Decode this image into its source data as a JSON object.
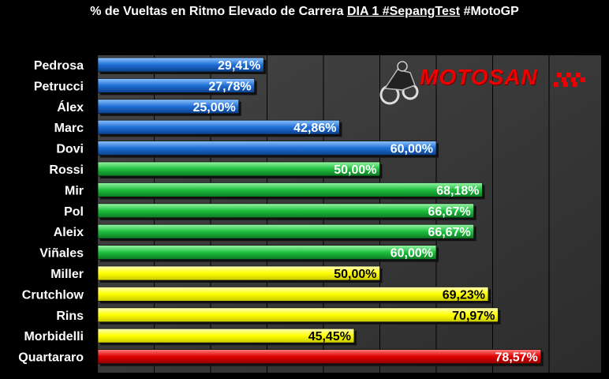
{
  "title": {
    "part1": "% de Vueltas en Ritmo Elevado de Carrera",
    "part2": "DIA 1 #SepangTest",
    "part3": "#MotoGP"
  },
  "logo": {
    "text": "MOTOSAN"
  },
  "colors": {
    "background": "#000000",
    "plot_area": "#3a3a3a",
    "blue": "#1f6fd6",
    "green": "#1fbf3f",
    "yellow": "#ffff00",
    "red": "#e00000"
  },
  "chart_data": {
    "type": "bar",
    "orientation": "horizontal",
    "categories": [
      "Pedrosa",
      "Petrucci",
      "Álex",
      "Marc",
      "Dovi",
      "Rossi",
      "Mir",
      "Pol",
      "Aleix",
      "Viñales",
      "Miller",
      "Crutchlow",
      "Rins",
      "Morbidelli",
      "Quartararo"
    ],
    "values": [
      29.41,
      27.78,
      25.0,
      42.86,
      60.0,
      50.0,
      68.18,
      66.67,
      66.67,
      60.0,
      50.0,
      69.23,
      70.97,
      45.45,
      78.57
    ],
    "value_labels": [
      "29,41%",
      "27,78%",
      "25,00%",
      "42,86%",
      "60,00%",
      "50,00%",
      "68,18%",
      "66,67%",
      "66,67%",
      "60,00%",
      "50,00%",
      "69,23%",
      "70,97%",
      "45,45%",
      "78,57%"
    ],
    "bar_colors": [
      "blue",
      "blue",
      "blue",
      "blue",
      "blue",
      "green",
      "green",
      "green",
      "green",
      "green",
      "yellow",
      "yellow",
      "yellow",
      "yellow",
      "red"
    ],
    "xlim": [
      0,
      100
    ],
    "grid": true,
    "xlabel": "",
    "ylabel": ""
  }
}
